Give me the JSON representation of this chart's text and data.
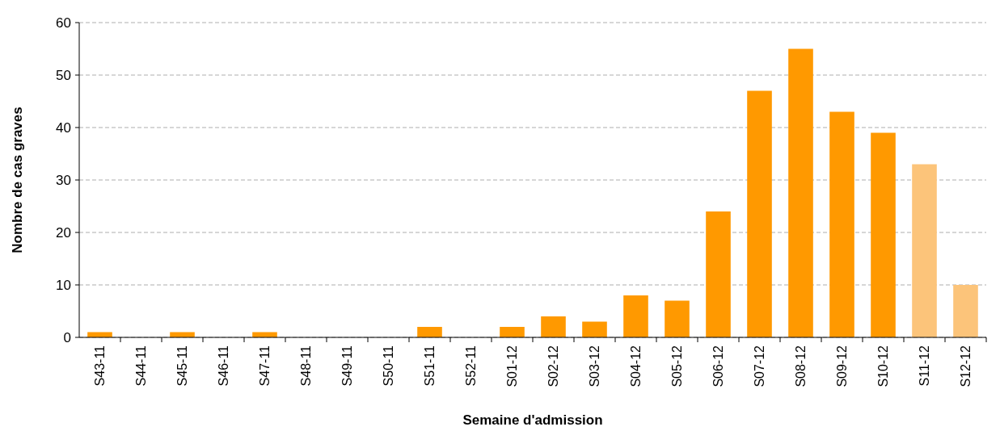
{
  "chart_data": {
    "type": "bar",
    "xlabel": "Semaine d'admission",
    "ylabel": "Nombre de cas graves",
    "categories": [
      "S43-11",
      "S44-11",
      "S45-11",
      "S46-11",
      "S47-11",
      "S48-11",
      "S49-11",
      "S50-11",
      "S51-11",
      "S52-11",
      "S01-12",
      "S02-12",
      "S03-12",
      "S04-12",
      "S05-12",
      "S06-12",
      "S07-12",
      "S08-12",
      "S09-12",
      "S10-12",
      "S11-12",
      "S12-12"
    ],
    "values": [
      1,
      0,
      1,
      0,
      1,
      0,
      0,
      0,
      2,
      0,
      2,
      4,
      3,
      8,
      7,
      24,
      47,
      55,
      43,
      39,
      33,
      10
    ],
    "colors": [
      "#ff9900",
      "#ff9900",
      "#ff9900",
      "#ff9900",
      "#ff9900",
      "#ff9900",
      "#ff9900",
      "#ff9900",
      "#ff9900",
      "#ff9900",
      "#ff9900",
      "#ff9900",
      "#ff9900",
      "#ff9900",
      "#ff9900",
      "#ff9900",
      "#ff9900",
      "#ff9900",
      "#ff9900",
      "#ff9900",
      "#fcc47a",
      "#fcc47a"
    ],
    "ylim": [
      0,
      60
    ],
    "yticks": [
      0,
      10,
      20,
      30,
      40,
      50,
      60
    ],
    "grid": "y"
  }
}
